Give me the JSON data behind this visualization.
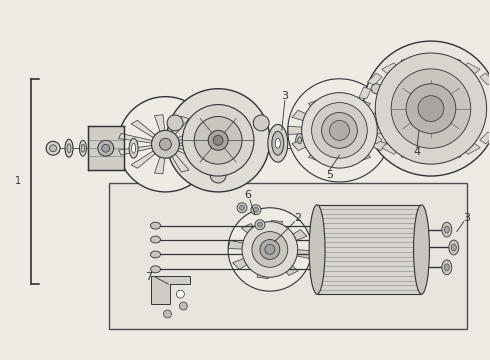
{
  "bg_color": "#eeeae4",
  "line_color": "#333333",
  "label_color": "#222222",
  "fig_width": 4.9,
  "fig_height": 3.6,
  "dpi": 100
}
